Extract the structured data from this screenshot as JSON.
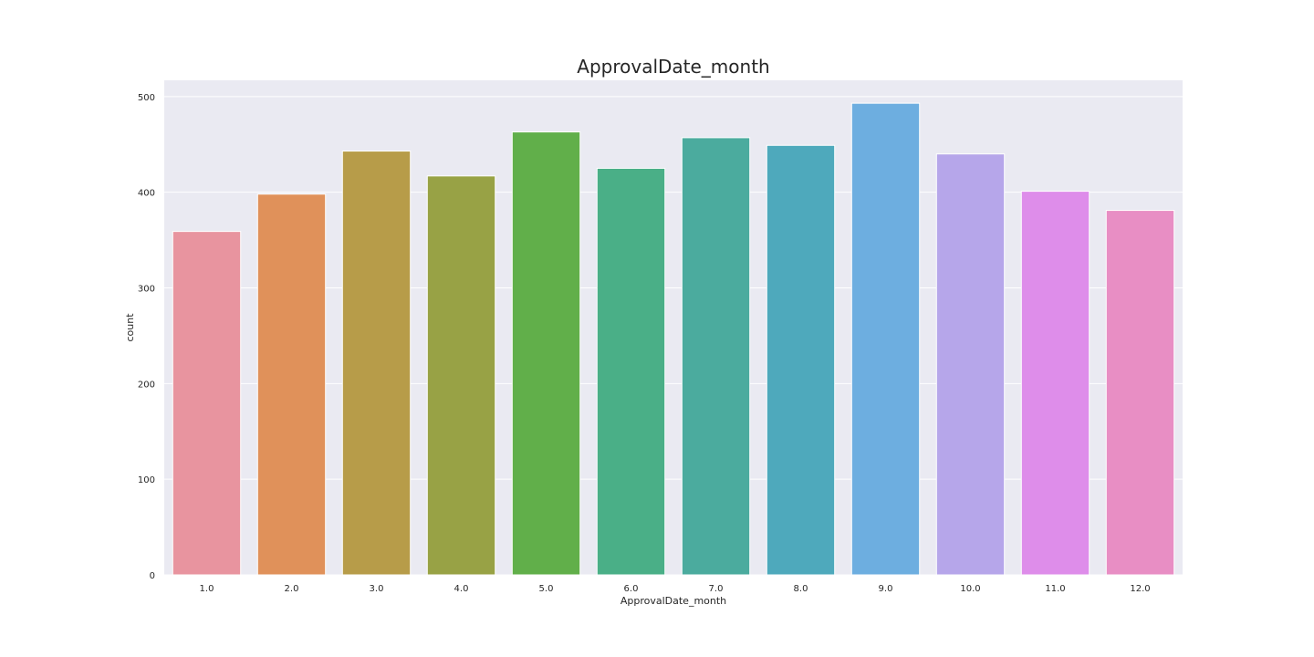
{
  "chart_data": {
    "type": "bar",
    "title": "ApprovalDate_month",
    "xlabel": "ApprovalDate_month",
    "ylabel": "count",
    "categories": [
      "1.0",
      "2.0",
      "3.0",
      "4.0",
      "5.0",
      "6.0",
      "7.0",
      "8.0",
      "9.0",
      "10.0",
      "11.0",
      "12.0"
    ],
    "values": [
      359,
      398,
      443,
      417,
      463,
      425,
      457,
      449,
      493,
      440,
      401,
      381
    ],
    "colors": [
      "#e8949f",
      "#e0915a",
      "#b79c49",
      "#98a245",
      "#61af4a",
      "#4aaf87",
      "#4bab9e",
      "#4ea9bc",
      "#6daee0",
      "#b6a6ea",
      "#de8dea",
      "#e88ec4"
    ],
    "yticks": [
      0,
      100,
      200,
      300,
      400,
      500
    ],
    "ylim": [
      0,
      517
    ],
    "grid": true,
    "background": "#eaeaf2",
    "grid_color": "#ffffff"
  }
}
